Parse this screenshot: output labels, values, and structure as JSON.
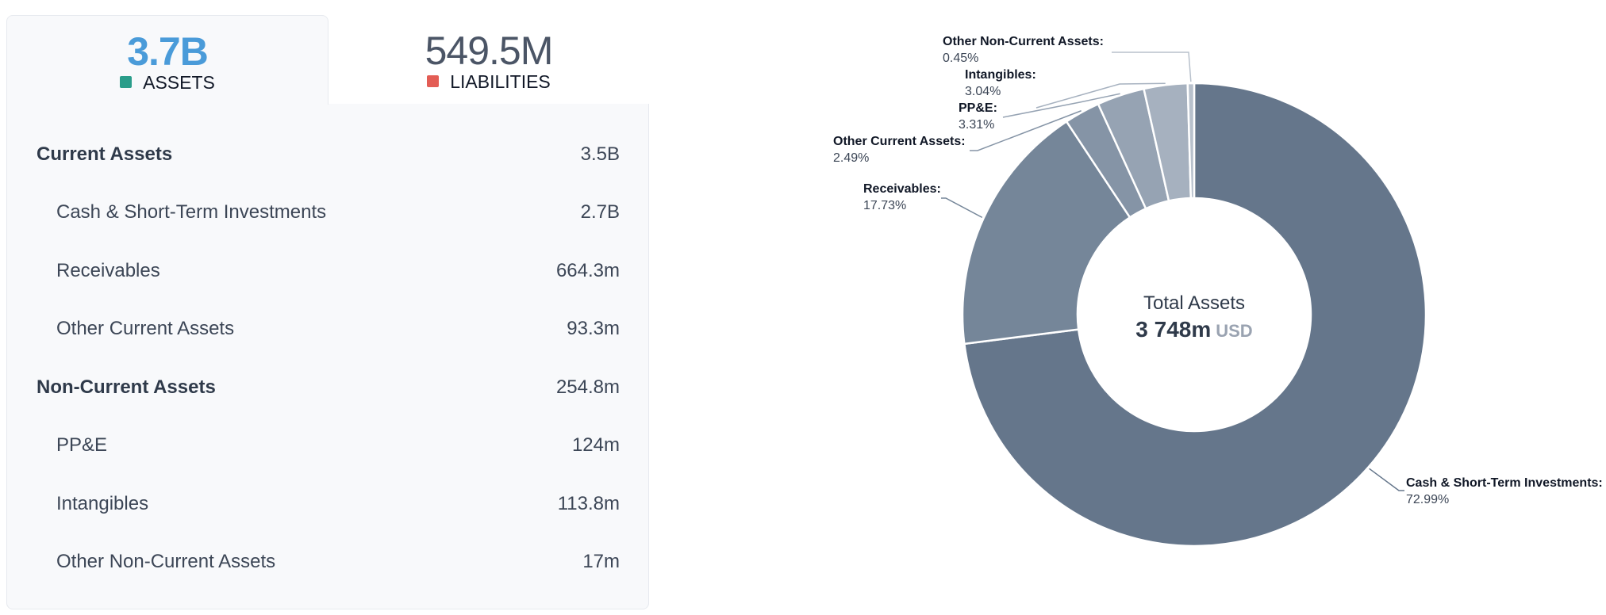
{
  "tabs": {
    "assets": {
      "value": "3.7B",
      "label": "ASSETS",
      "swatch_color": "#2a9d8a"
    },
    "liabilities": {
      "value": "549.5M",
      "label": "LIABILITIES",
      "swatch_color": "#e35d55"
    }
  },
  "rows": [
    {
      "label": "Current Assets",
      "value": "3.5B",
      "level": "group"
    },
    {
      "label": "Cash & Short-Term Investments",
      "value": "2.7B",
      "level": "sub"
    },
    {
      "label": "Receivables",
      "value": "664.3m",
      "level": "sub"
    },
    {
      "label": "Other Current Assets",
      "value": "93.3m",
      "level": "sub"
    },
    {
      "label": "Non-Current Assets",
      "value": "254.8m",
      "level": "group"
    },
    {
      "label": "PP&E",
      "value": "124m",
      "level": "sub"
    },
    {
      "label": "Intangibles",
      "value": "113.8m",
      "level": "sub"
    },
    {
      "label": "Other Non-Current Assets",
      "value": "17m",
      "level": "sub"
    }
  ],
  "chart_data": {
    "type": "pie",
    "center": {
      "title": "Total Assets",
      "value": "3 748m",
      "unit": "USD"
    },
    "slices": [
      {
        "name": "Cash & Short-Term Investments:",
        "pct_label": "72.99%",
        "value": 72.99,
        "color": "#65768b"
      },
      {
        "name": "Receivables:",
        "pct_label": "17.73%",
        "value": 17.73,
        "color": "#758699"
      },
      {
        "name": "Other Current Assets:",
        "pct_label": "2.49%",
        "value": 2.49,
        "color": "#8594a6"
      },
      {
        "name": "PP&E:",
        "pct_label": "3.31%",
        "value": 3.31,
        "color": "#96a3b3"
      },
      {
        "name": "Intangibles:",
        "pct_label": "3.04%",
        "value": 3.04,
        "color": "#a6b1bf"
      },
      {
        "name": "Other Non-Current Assets:",
        "pct_label": "0.45%",
        "value": 0.45,
        "color": "#b8c1cc"
      }
    ]
  }
}
